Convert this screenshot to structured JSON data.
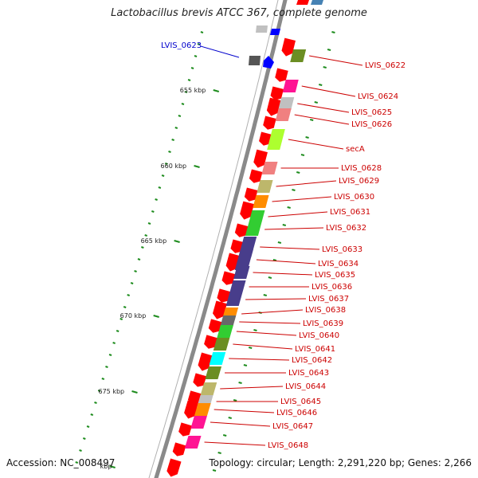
{
  "title": "Lactobacillus brevis ATCC 367, complete genome",
  "footer": {
    "accession": "Accession: NC_008497",
    "topology": "Topology: circular; Length: 2,291,220 bp; Genes: 2,266"
  },
  "ruler_labels": [
    "655 kbp",
    "660 kbp",
    "665 kbp",
    "670 kbp",
    "675 kbp",
    "kbp"
  ],
  "colors": {
    "backbone": "#8a8a8a",
    "gene_arrow": "#ff0000",
    "label": "#cc0000",
    "highlight": "#0000cc",
    "tick": "#1e8c1e"
  },
  "highlighted_gene": "LVIS_0623",
  "genes": [
    {
      "label": "LVIS_0622",
      "color": "#6b8e23"
    },
    {
      "label": "LVIS_0624",
      "color": "#ff1493"
    },
    {
      "label": "LVIS_0625",
      "color": "#c0c0c0"
    },
    {
      "label": "LVIS_0626",
      "color": "#f08080"
    },
    {
      "label": "secA",
      "color": "#adff2f"
    },
    {
      "label": "LVIS_0628",
      "color": "#f08080"
    },
    {
      "label": "LVIS_0629",
      "color": "#bdb76b"
    },
    {
      "label": "LVIS_0630",
      "color": "#ff8c00"
    },
    {
      "label": "LVIS_0631",
      "color": "#32cd32"
    },
    {
      "label": "LVIS_0632",
      "color": "#32cd32"
    },
    {
      "label": "LVIS_0633",
      "color": "#483d8b"
    },
    {
      "label": "LVIS_0634",
      "color": "#483d8b"
    },
    {
      "label": "LVIS_0635",
      "color": "#483d8b"
    },
    {
      "label": "LVIS_0636",
      "color": "#483d8b"
    },
    {
      "label": "LVIS_0637",
      "color": "#483d8b"
    },
    {
      "label": "LVIS_0638",
      "color": "#ff8c00"
    },
    {
      "label": "LVIS_0639",
      "color": "#696969"
    },
    {
      "label": "LVIS_0640",
      "color": "#32cd32"
    },
    {
      "label": "LVIS_0641",
      "color": "#6b8e23"
    },
    {
      "label": "LVIS_0642",
      "color": "#00ffff"
    },
    {
      "label": "LVIS_0643",
      "color": "#6b8e23"
    },
    {
      "label": "LVIS_0644",
      "color": "#bdb76b"
    },
    {
      "label": "LVIS_0645",
      "color": "#c0c0c0"
    },
    {
      "label": "LVIS_0646",
      "color": "#ff8c00"
    },
    {
      "label": "LVIS_0647",
      "color": "#ff1493"
    },
    {
      "label": "LVIS_0648",
      "color": "#ff1493"
    }
  ]
}
